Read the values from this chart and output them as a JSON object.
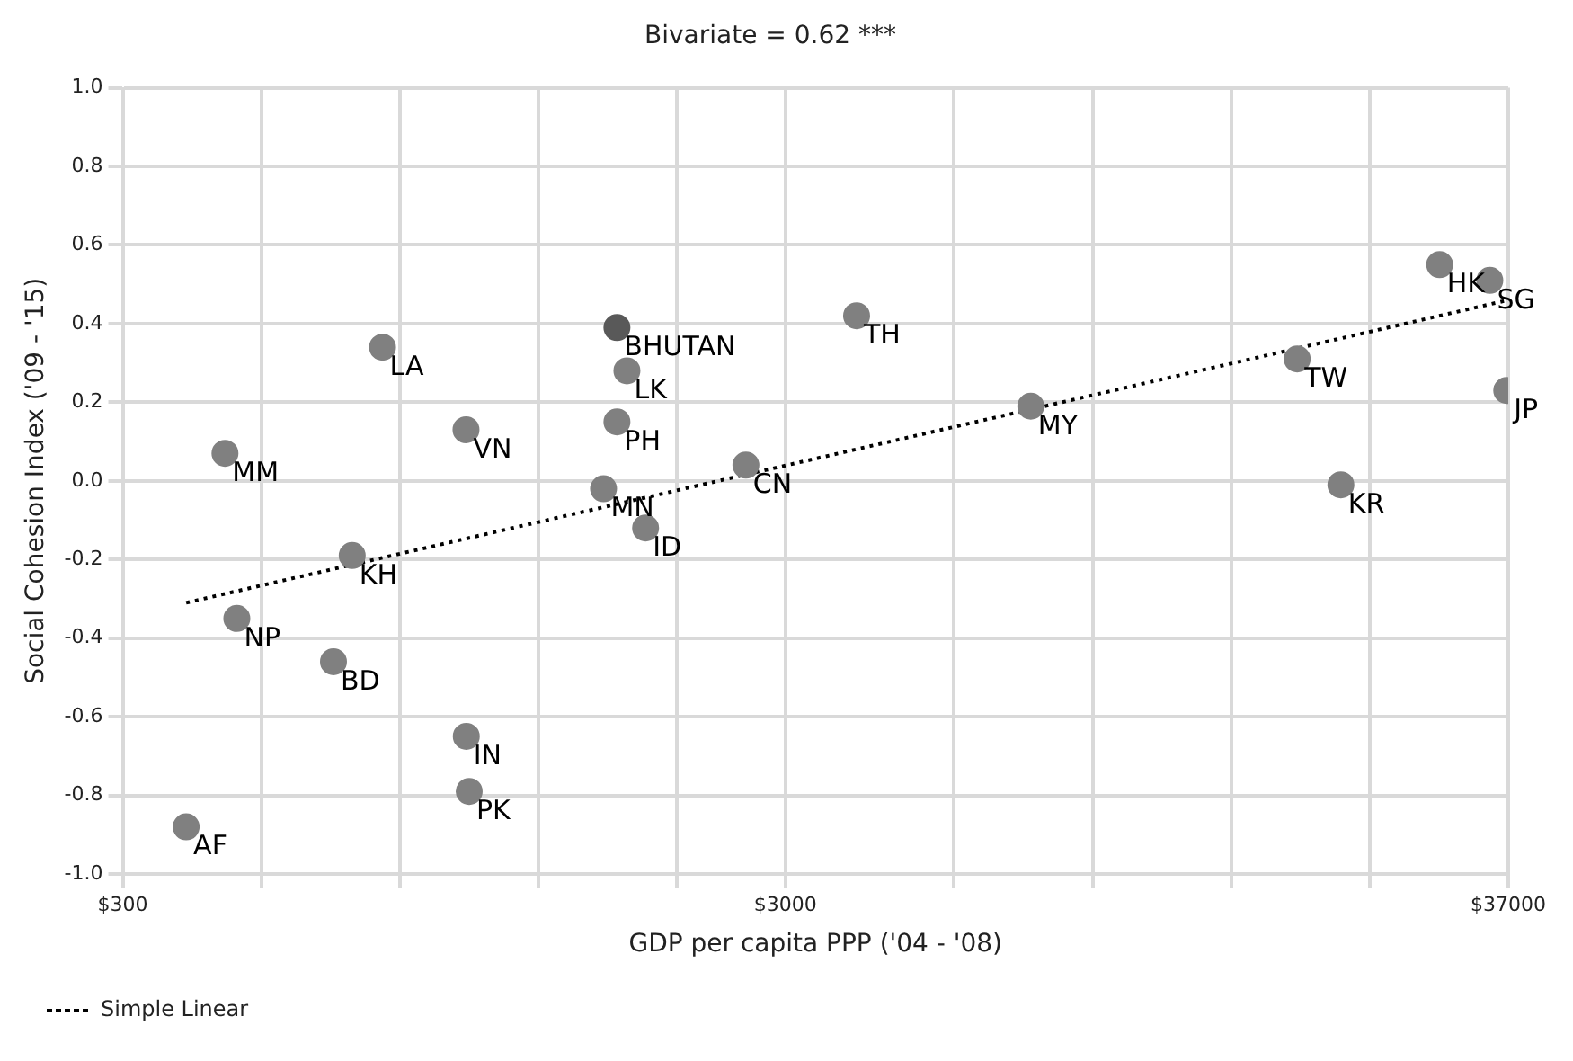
{
  "chart_data": {
    "type": "scatter",
    "title": "Bivariate = 0.62 ***",
    "xlabel": "GDP per capita PPP ('04 - '08)",
    "ylabel": "Social Cohesion Index ('09 - '15)",
    "log": "x",
    "grid": true,
    "marker": "circle",
    "legend": "bottom left",
    "xlim": [
      300,
      37000
    ],
    "xticks": [
      {
        "value": 300,
        "label": "$300"
      },
      {
        "value": 486,
        "label": null
      },
      {
        "value": 786,
        "label": null
      },
      {
        "value": 1272,
        "label": null
      },
      {
        "value": 2059,
        "label": null
      },
      {
        "value": 3000,
        "label": "$3000"
      },
      {
        "value": 5393,
        "label": null
      },
      {
        "value": 8728,
        "label": null
      },
      {
        "value": 14127,
        "label": null
      },
      {
        "value": 22865,
        "label": null
      },
      {
        "value": 37000,
        "label": "$37000"
      }
    ],
    "ylim": [
      -1,
      1
    ],
    "yticks": [
      {
        "value": -1,
        "label": "-1.0"
      },
      {
        "value": -0.8,
        "label": "-0.8"
      },
      {
        "value": -0.6,
        "label": "-0.6"
      },
      {
        "value": -0.4,
        "label": "-0.4"
      },
      {
        "value": -0.2,
        "label": "-0.2"
      },
      {
        "value": 0,
        "label": "0.0"
      },
      {
        "value": 0.2,
        "label": "0.2"
      },
      {
        "value": 0.4,
        "label": "0.4"
      },
      {
        "value": 0.6,
        "label": "0.6"
      },
      {
        "value": 0.8,
        "label": "0.8"
      },
      {
        "value": 1,
        "label": "1.0"
      }
    ],
    "series": [
      {
        "type": "scatter",
        "color": "#808080",
        "x": [
          374,
          446,
          428,
          624,
          666,
          740,
          989,
          990,
          1000,
          1595,
          1671,
          1730,
          1671,
          1846,
          2616,
          3843,
          7040,
          17770,
          20680,
          29150,
          34700,
          36800
        ],
        "values": [
          -0.88,
          -0.35,
          0.07,
          -0.46,
          -0.19,
          0.34,
          0.13,
          -0.65,
          -0.79,
          -0.02,
          0.39,
          0.28,
          0.15,
          -0.12,
          0.04,
          0.42,
          0.19,
          0.31,
          -0.01,
          0.55,
          0.51,
          0.23
        ],
        "colors": [
          "#808080",
          "#808080",
          "#808080",
          "#808080",
          "#808080",
          "#808080",
          "#808080",
          "#808080",
          "#808080",
          "#808080",
          "#595959",
          "#808080",
          "#808080",
          "#808080",
          "#808080",
          "#808080",
          "#808080",
          "#808080",
          "#808080",
          "#808080",
          "#808080",
          "#808080"
        ]
      },
      {
        "type": "line",
        "name": "Simple Linear",
        "color": "#000000",
        "line_style": "dotted",
        "marker": "none",
        "x": [
          374,
          37000
        ],
        "values": [
          -0.31,
          0.46
        ]
      }
    ],
    "annotations": [
      {
        "text": "AF",
        "x": 374,
        "y": -0.88
      },
      {
        "text": "NP",
        "x": 446,
        "y": -0.35
      },
      {
        "text": "MM",
        "x": 428,
        "y": 0.07
      },
      {
        "text": "BD",
        "x": 624,
        "y": -0.46
      },
      {
        "text": "KH",
        "x": 666,
        "y": -0.19
      },
      {
        "text": "LA",
        "x": 740,
        "y": 0.34
      },
      {
        "text": "VN",
        "x": 989,
        "y": 0.13
      },
      {
        "text": "IN",
        "x": 990,
        "y": -0.65
      },
      {
        "text": "PK",
        "x": 1000,
        "y": -0.79
      },
      {
        "text": "MN",
        "x": 1595,
        "y": -0.02
      },
      {
        "text": "BHUTAN",
        "x": 1671,
        "y": 0.39
      },
      {
        "text": "LK",
        "x": 1730,
        "y": 0.28
      },
      {
        "text": "PH",
        "x": 1671,
        "y": 0.15
      },
      {
        "text": "ID",
        "x": 1846,
        "y": -0.12
      },
      {
        "text": "CN",
        "x": 2616,
        "y": 0.04
      },
      {
        "text": "TH",
        "x": 3843,
        "y": 0.42
      },
      {
        "text": "MY",
        "x": 7040,
        "y": 0.19
      },
      {
        "text": "TW",
        "x": 17770,
        "y": 0.31
      },
      {
        "text": "KR",
        "x": 20680,
        "y": -0.01
      },
      {
        "text": "HK",
        "x": 29150,
        "y": 0.55
      },
      {
        "text": "SG",
        "x": 34700,
        "y": 0.51
      },
      {
        "text": "JP",
        "x": 36800,
        "y": 0.23
      }
    ]
  }
}
